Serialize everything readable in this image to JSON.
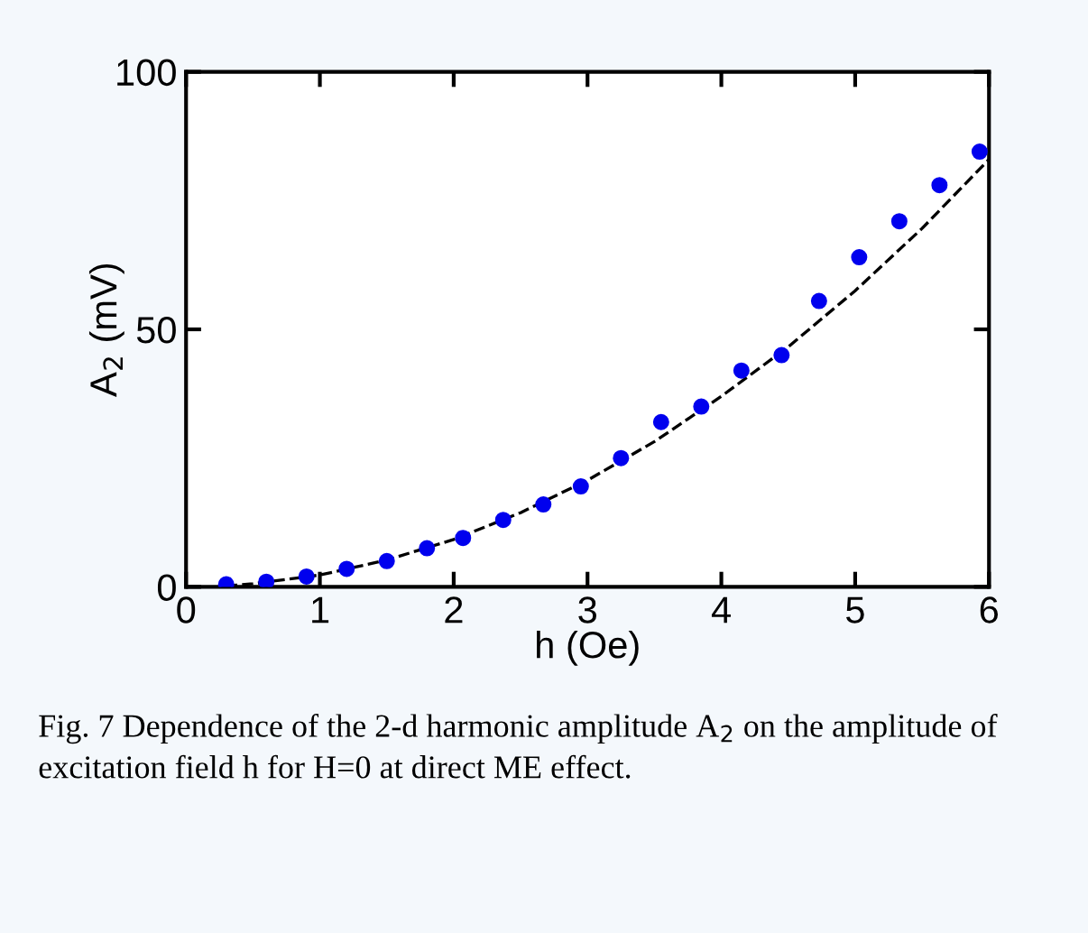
{
  "chart_data": {
    "type": "scatter",
    "xlabel": "h (Oe)",
    "ylabel": "A$_{2}$ (mV)",
    "xlim": [
      0,
      6
    ],
    "ylim": [
      0,
      100
    ],
    "xticks": [
      0,
      1,
      2,
      3,
      4,
      5,
      6
    ],
    "yticks": [
      0,
      50,
      100
    ],
    "grid": false,
    "legend": false,
    "series": [
      {
        "marker": "circle",
        "color": "#0000ee",
        "x": [
          0.3,
          0.6,
          0.9,
          1.2,
          1.5,
          1.8,
          2.07,
          2.37,
          2.67,
          2.95,
          3.25,
          3.55,
          3.85,
          4.15,
          4.45,
          4.73,
          5.03,
          5.33,
          5.63,
          5.93
        ],
        "values": [
          0.5,
          1,
          2,
          3.5,
          5,
          7.5,
          9.5,
          13,
          16,
          19.5,
          25,
          32,
          35,
          42,
          45,
          55.5,
          64,
          71,
          78,
          84.5
        ]
      },
      {
        "type": "line",
        "color": "#000000",
        "line_style": "dashed",
        "x": [
          0.3,
          0.5,
          1,
          1.5,
          2,
          2.5,
          3,
          3.5,
          4,
          4.5,
          5,
          5.5,
          6
        ],
        "values": [
          0.2,
          0.6,
          2.3,
          5.2,
          9.2,
          14.4,
          20.7,
          28.2,
          37,
          46.6,
          57.5,
          69.6,
          83
        ]
      }
    ],
    "annotations": [
      "Fig. 7 Dependence of the 2-d harmonic amplitude A$_{2}$ on the amplitude of excitation field h for H=0 at direct ME effect."
    ]
  }
}
